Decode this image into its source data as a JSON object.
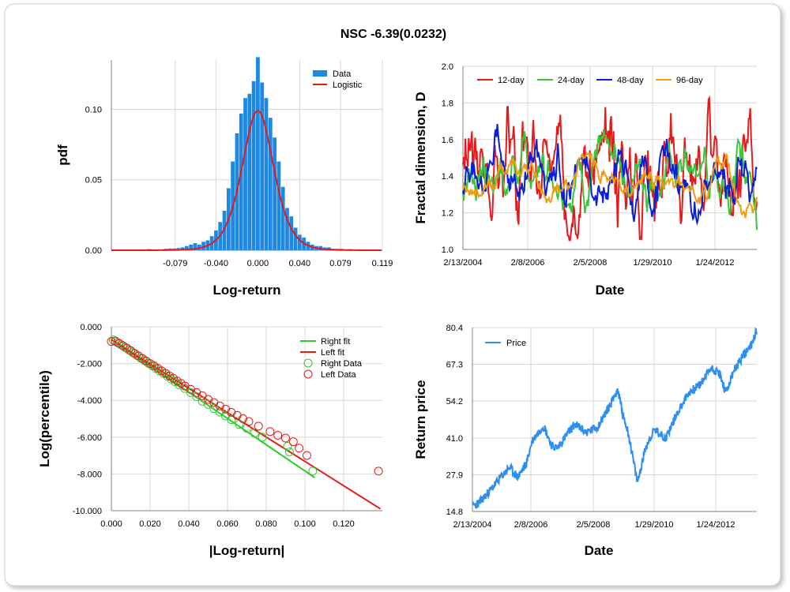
{
  "title": "NSC -6.39(0.0232)",
  "chart_data": [
    {
      "id": "pdf",
      "type": "bar",
      "xlabel": "Log-return",
      "ylabel": "pdf",
      "xlim": [
        -0.14,
        0.119
      ],
      "ylim": [
        0,
        0.135
      ],
      "xticks": [
        "-0.079",
        "-0.040",
        "0.000",
        "0.040",
        "0.079",
        "0.119"
      ],
      "xtick_values": [
        -0.079,
        -0.04,
        0.0,
        0.04,
        0.079,
        0.119
      ],
      "yticks": [
        "0.00",
        "0.05",
        "0.10"
      ],
      "ytick_values": [
        0,
        0.05,
        0.1
      ],
      "legend": [
        "Data",
        "Logistic"
      ],
      "legend_position": "top-right",
      "bin_width": 0.004,
      "bins": [
        -0.112,
        -0.104,
        -0.096,
        -0.088,
        -0.084,
        -0.08,
        -0.076,
        -0.072,
        -0.068,
        -0.064,
        -0.06,
        -0.056,
        -0.052,
        -0.048,
        -0.044,
        -0.04,
        -0.036,
        -0.032,
        -0.028,
        -0.024,
        -0.02,
        -0.016,
        -0.012,
        -0.008,
        -0.004,
        0.0,
        0.004,
        0.008,
        0.012,
        0.016,
        0.02,
        0.024,
        0.028,
        0.032,
        0.036,
        0.04,
        0.044,
        0.048,
        0.052,
        0.056,
        0.06,
        0.064,
        0.068,
        0.072,
        0.076,
        0.08,
        0.088,
        0.096,
        0.104
      ],
      "values": [
        0.0005,
        0.0008,
        0.0005,
        0.001,
        0.0012,
        0.0012,
        0.0015,
        0.002,
        0.003,
        0.004,
        0.005,
        0.004,
        0.006,
        0.007,
        0.01,
        0.014,
        0.02,
        0.028,
        0.044,
        0.063,
        0.083,
        0.097,
        0.108,
        0.111,
        0.12,
        0.137,
        0.119,
        0.108,
        0.094,
        0.08,
        0.063,
        0.045,
        0.03,
        0.024,
        0.016,
        0.011,
        0.009,
        0.006,
        0.004,
        0.003,
        0.003,
        0.002,
        0.002,
        0.001,
        0.001,
        0.001,
        0.0008,
        0.0005,
        0.0005
      ],
      "fit": {
        "name": "Logistic",
        "mu": 0.0,
        "s": 0.0101,
        "color": "#e41a1c"
      },
      "bar_color": "#1e88e5"
    },
    {
      "id": "fractal",
      "type": "line",
      "xlabel": "Date",
      "ylabel": "Fractal dimension, D",
      "ylim": [
        1.0,
        2.0
      ],
      "yticks": [
        "1.0",
        "1.2",
        "1.4",
        "1.6",
        "1.8",
        "2.0"
      ],
      "ytick_values": [
        1.0,
        1.2,
        1.4,
        1.6,
        1.8,
        2.0
      ],
      "xticks": [
        "2/13/2004",
        "2/8/2006",
        "2/5/2008",
        "1/29/2010",
        "1/24/2012"
      ],
      "legend_position": "top",
      "series": [
        {
          "name": "12-day",
          "color": "#e41a1c",
          "seed": 3,
          "mean": 1.45,
          "amp": 0.22,
          "smooth": 2
        },
        {
          "name": "24-day",
          "color": "#3cc43c",
          "seed": 7,
          "mean": 1.43,
          "amp": 0.17,
          "smooth": 4
        },
        {
          "name": "48-day",
          "color": "#0b1fd6",
          "seed": 11,
          "mean": 1.4,
          "amp": 0.15,
          "smooth": 7
        },
        {
          "name": "96-day",
          "color": "#f39c12",
          "seed": 17,
          "mean": 1.4,
          "amp": 0.12,
          "smooth": 11
        }
      ]
    },
    {
      "id": "tails",
      "type": "scatter",
      "xlabel": "|Log-return|",
      "ylabel": "Log(percentile)",
      "xlim": [
        0,
        0.14
      ],
      "ylim": [
        -10,
        0
      ],
      "xticks": [
        "0.000",
        "0.020",
        "0.040",
        "0.060",
        "0.080",
        "0.100",
        "0.120"
      ],
      "xtick_values": [
        0,
        0.02,
        0.04,
        0.06,
        0.08,
        0.1,
        0.12
      ],
      "yticks": [
        "0.000",
        "-2.000",
        "-4.000",
        "-6.000",
        "-8.000",
        "-10.000"
      ],
      "ytick_values": [
        0,
        -2,
        -4,
        -6,
        -8,
        -10
      ],
      "legend": [
        "Right fit",
        "Left fit",
        "Right Data",
        "Left Data"
      ],
      "legend_position": "top-right",
      "right_fit": {
        "x": [
          0.0,
          0.105
        ],
        "y": [
          -0.7,
          -8.2
        ],
        "color": "#2ecc2e"
      },
      "left_fit": {
        "x": [
          0.0,
          0.139
        ],
        "y": [
          -0.7,
          -9.9
        ],
        "color": "#e41a1c"
      },
      "right_points": [
        [
          0.001,
          -0.72
        ],
        [
          0.003,
          -0.85
        ],
        [
          0.005,
          -0.98
        ],
        [
          0.007,
          -1.12
        ],
        [
          0.009,
          -1.26
        ],
        [
          0.011,
          -1.4
        ],
        [
          0.013,
          -1.55
        ],
        [
          0.015,
          -1.7
        ],
        [
          0.017,
          -1.84
        ],
        [
          0.019,
          -1.98
        ],
        [
          0.021,
          -2.12
        ],
        [
          0.023,
          -2.27
        ],
        [
          0.025,
          -2.41
        ],
        [
          0.027,
          -2.55
        ],
        [
          0.029,
          -2.7
        ],
        [
          0.031,
          -2.85
        ],
        [
          0.033,
          -3.0
        ],
        [
          0.035,
          -3.15
        ],
        [
          0.038,
          -3.36
        ],
        [
          0.041,
          -3.58
        ],
        [
          0.044,
          -3.8
        ],
        [
          0.047,
          -4.05
        ],
        [
          0.05,
          -4.22
        ],
        [
          0.053,
          -4.45
        ],
        [
          0.056,
          -4.64
        ],
        [
          0.059,
          -4.85
        ],
        [
          0.062,
          -5.05
        ],
        [
          0.066,
          -5.3
        ],
        [
          0.07,
          -5.52
        ],
        [
          0.074,
          -5.78
        ],
        [
          0.078,
          -6.0
        ],
        [
          0.091,
          -6.5
        ],
        [
          0.092,
          -6.8
        ],
        [
          0.104,
          -7.85
        ]
      ],
      "left_points": [
        [
          0.0,
          -0.8
        ],
        [
          0.002,
          -0.78
        ],
        [
          0.004,
          -0.9
        ],
        [
          0.006,
          -1.03
        ],
        [
          0.008,
          -1.16
        ],
        [
          0.01,
          -1.3
        ],
        [
          0.012,
          -1.45
        ],
        [
          0.014,
          -1.58
        ],
        [
          0.016,
          -1.72
        ],
        [
          0.018,
          -1.86
        ],
        [
          0.02,
          -2.0
        ],
        [
          0.022,
          -2.12
        ],
        [
          0.024,
          -2.26
        ],
        [
          0.026,
          -2.4
        ],
        [
          0.028,
          -2.53
        ],
        [
          0.03,
          -2.67
        ],
        [
          0.032,
          -2.8
        ],
        [
          0.034,
          -2.95
        ],
        [
          0.036,
          -3.08
        ],
        [
          0.038,
          -3.22
        ],
        [
          0.041,
          -3.4
        ],
        [
          0.044,
          -3.58
        ],
        [
          0.047,
          -3.75
        ],
        [
          0.05,
          -3.95
        ],
        [
          0.053,
          -4.12
        ],
        [
          0.056,
          -4.3
        ],
        [
          0.059,
          -4.48
        ],
        [
          0.062,
          -4.65
        ],
        [
          0.065,
          -4.82
        ],
        [
          0.068,
          -5.0
        ],
        [
          0.071,
          -5.15
        ],
        [
          0.076,
          -5.4
        ],
        [
          0.082,
          -5.7
        ],
        [
          0.086,
          -5.9
        ],
        [
          0.09,
          -6.05
        ],
        [
          0.094,
          -6.25
        ],
        [
          0.097,
          -6.6
        ],
        [
          0.101,
          -7.0
        ],
        [
          0.138,
          -7.85
        ]
      ]
    },
    {
      "id": "price",
      "type": "line",
      "xlabel": "Date",
      "ylabel": "Return price",
      "ylim": [
        14.8,
        80.4
      ],
      "yticks": [
        "14.8",
        "27.9",
        "41.0",
        "54.2",
        "67.3",
        "80.4"
      ],
      "ytick_values": [
        14.8,
        27.9,
        41.0,
        54.2,
        67.3,
        80.4
      ],
      "xticks": [
        "2/13/2004",
        "2/8/2006",
        "2/5/2008",
        "1/29/2010",
        "1/24/2012"
      ],
      "legend": [
        "Price"
      ],
      "legend_position": "top-left",
      "color": "#2e8ff0",
      "anchors": [
        [
          0.0,
          17.0
        ],
        [
          0.02,
          17.5
        ],
        [
          0.06,
          22.0
        ],
        [
          0.1,
          27.0
        ],
        [
          0.13,
          30.5
        ],
        [
          0.16,
          27.0
        ],
        [
          0.19,
          32.0
        ],
        [
          0.21,
          40.0
        ],
        [
          0.25,
          45.5
        ],
        [
          0.28,
          38.0
        ],
        [
          0.3,
          37.5
        ],
        [
          0.33,
          42.0
        ],
        [
          0.36,
          46.0
        ],
        [
          0.4,
          43.0
        ],
        [
          0.44,
          45.0
        ],
        [
          0.48,
          52.0
        ],
        [
          0.51,
          58.5
        ],
        [
          0.53,
          49.0
        ],
        [
          0.55,
          42.0
        ],
        [
          0.58,
          25.0
        ],
        [
          0.61,
          38.0
        ],
        [
          0.64,
          44.0
        ],
        [
          0.68,
          41.0
        ],
        [
          0.72,
          50.0
        ],
        [
          0.76,
          57.0
        ],
        [
          0.8,
          60.0
        ],
        [
          0.84,
          66.0
        ],
        [
          0.87,
          64.0
        ],
        [
          0.89,
          57.0
        ],
        [
          0.92,
          65.0
        ],
        [
          0.95,
          70.0
        ],
        [
          0.98,
          74.0
        ],
        [
          1.0,
          80.0
        ]
      ]
    }
  ]
}
